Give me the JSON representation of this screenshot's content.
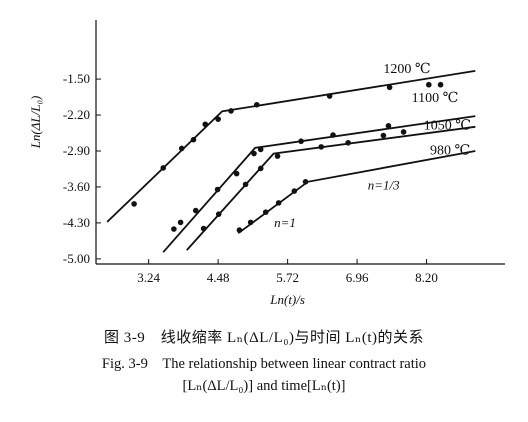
{
  "chart_data": {
    "type": "scatter",
    "ylabel": "Ln(ΔL/L₀)",
    "xlabel": "Ln(t)/s",
    "xticks": [
      3.24,
      4.48,
      5.72,
      6.96,
      8.2
    ],
    "xtick_labels": [
      "3.24",
      "4.48",
      "5.72",
      "6.96",
      "8.20"
    ],
    "yticks": [
      -1.5,
      -2.2,
      -2.9,
      -3.6,
      -4.3,
      -5.0
    ],
    "ytick_labels": [
      "-1.50",
      "-2.20",
      "-2.90",
      "-3.60",
      "-4.30",
      "-5.00"
    ],
    "xlim": [
      2.3,
      9.6
    ],
    "ylim": [
      -5.1,
      -0.35
    ],
    "grid": false,
    "series": [
      {
        "name": "1200 ℃",
        "points": [
          [
            2.98,
            -3.93
          ],
          [
            3.5,
            -3.23
          ],
          [
            3.83,
            -2.85
          ],
          [
            4.04,
            -2.68
          ],
          [
            4.25,
            -2.38
          ],
          [
            4.48,
            -2.28
          ],
          [
            4.71,
            -2.12
          ],
          [
            5.17,
            -2.0
          ],
          [
            6.47,
            -1.83
          ],
          [
            7.54,
            -1.66
          ],
          [
            8.24,
            -1.61
          ],
          [
            8.45,
            -1.61
          ]
        ],
        "fit": [
          [
            2.5,
            -4.28
          ],
          [
            4.55,
            -2.13
          ],
          [
            9.07,
            -1.34
          ]
        ]
      },
      {
        "name": "1100 ℃",
        "points": [
          [
            3.69,
            -4.42
          ],
          [
            3.81,
            -4.29
          ],
          [
            4.08,
            -4.06
          ],
          [
            4.47,
            -3.65
          ],
          [
            4.81,
            -3.34
          ],
          [
            5.12,
            -2.95
          ],
          [
            5.24,
            -2.87
          ],
          [
            5.96,
            -2.71
          ],
          [
            6.53,
            -2.59
          ],
          [
            7.52,
            -2.41
          ]
        ],
        "fit": [
          [
            3.5,
            -4.87
          ],
          [
            5.14,
            -2.84
          ],
          [
            9.07,
            -2.22
          ]
        ]
      },
      {
        "name": "1050 ℃",
        "points": [
          [
            4.22,
            -4.41
          ],
          [
            4.49,
            -4.13
          ],
          [
            4.97,
            -3.55
          ],
          [
            5.24,
            -3.24
          ],
          [
            5.54,
            -3.0
          ],
          [
            6.32,
            -2.82
          ],
          [
            6.8,
            -2.74
          ],
          [
            7.43,
            -2.6
          ],
          [
            7.79,
            -2.53
          ]
        ],
        "fit": [
          [
            3.92,
            -4.83
          ],
          [
            5.47,
            -2.95
          ],
          [
            9.07,
            -2.43
          ]
        ]
      },
      {
        "name": "980 ℃",
        "points": [
          [
            4.86,
            -4.44
          ],
          [
            5.06,
            -4.29
          ],
          [
            5.33,
            -4.09
          ],
          [
            5.56,
            -3.91
          ],
          [
            5.84,
            -3.68
          ],
          [
            6.04,
            -3.5
          ]
        ],
        "fit": [
          [
            4.84,
            -4.5
          ],
          [
            6.08,
            -3.5
          ],
          [
            9.07,
            -2.9
          ]
        ]
      }
    ],
    "curve_labels": [
      {
        "text": "1200 ℃",
        "x": 7.85,
        "y": -1.38,
        "series": 0
      },
      {
        "text": "1100 ℃",
        "x": 8.35,
        "y": -1.95,
        "series": 1
      },
      {
        "text": "1050 ℃",
        "x": 8.57,
        "y": -2.48,
        "series": 2
      },
      {
        "text": "980 ℃",
        "x": 8.62,
        "y": -2.97,
        "series": 3
      }
    ],
    "annotations": [
      {
        "text": "n=1",
        "x": 5.48,
        "y": -4.38
      },
      {
        "text": "n=1/3",
        "x": 7.15,
        "y": -3.65
      }
    ]
  },
  "caption": {
    "zh": "图 3-9　线收缩率 Lₙ(ΔL/L₀)与时间 Lₙ(t)的关系",
    "en_line1": "Fig. 3-9　The relationship between linear contract ratio",
    "en_line2": "[Lₙ(ΔL/L₀)] and time[Lₙ(t)]"
  }
}
